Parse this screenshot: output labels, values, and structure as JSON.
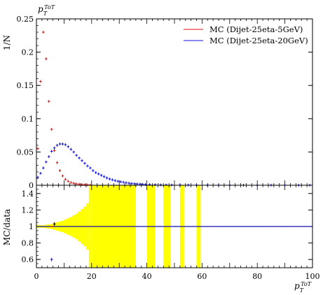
{
  "chart_data": [
    {
      "type": "scatter",
      "title": "",
      "xlabel": "",
      "ylabel": "1/N",
      "top_label": "p_T^ToT",
      "xlim": [
        0,
        100
      ],
      "ylim": [
        0,
        0.25
      ],
      "yticks": [
        0,
        0.05,
        0.1,
        0.15,
        0.2,
        0.25
      ],
      "ytick_labels": [
        "0",
        "0.05",
        "0.1",
        "0.15",
        "0.2",
        "0.25"
      ],
      "legend_position": "top-right",
      "series": [
        {
          "name": "MC (Dijet-25eta-5GeV)",
          "color": "#e01010",
          "x": [
            0.5,
            1.5,
            2.5,
            3.5,
            4.5,
            5.5,
            6.5,
            7.5,
            8.5,
            9.5,
            10.5,
            11.5,
            12.5,
            13.5,
            14.5,
            15.5,
            16.5,
            17.5,
            18.5,
            19.5
          ],
          "y": [
            0.055,
            0.156,
            0.23,
            0.19,
            0.126,
            0.084,
            0.052,
            0.034,
            0.022,
            0.014,
            0.009,
            0.006,
            0.004,
            0.003,
            0.002,
            0.0015,
            0.001,
            0.0008,
            0.0005,
            0.0003
          ]
        },
        {
          "name": "MC (Dijet-25eta-20GeV)",
          "color": "#1010e0",
          "x": [
            0.5,
            1.5,
            2.5,
            3.5,
            4.5,
            5.5,
            6.5,
            7.5,
            8.5,
            9.5,
            10.5,
            11.5,
            12.5,
            13.5,
            14.5,
            15.5,
            16.5,
            17.5,
            18.5,
            19.5,
            20.5,
            21.5,
            22.5,
            23.5,
            24.5,
            25.5,
            26.5,
            27.5,
            28.5,
            29.5,
            30.5,
            31.5,
            32.5,
            33.5,
            34.5,
            35.5,
            36.5,
            37.5,
            38.5,
            39.5,
            41,
            43,
            45,
            47,
            49,
            52,
            55,
            58,
            62,
            66,
            70,
            75,
            80,
            85,
            90,
            95,
            99
          ],
          "y": [
            0.012,
            0.018,
            0.026,
            0.035,
            0.043,
            0.051,
            0.056,
            0.06,
            0.062,
            0.062,
            0.061,
            0.058,
            0.054,
            0.05,
            0.045,
            0.041,
            0.037,
            0.033,
            0.029,
            0.026,
            0.022,
            0.019,
            0.017,
            0.015,
            0.013,
            0.011,
            0.0095,
            0.0082,
            0.007,
            0.006,
            0.0052,
            0.0045,
            0.0038,
            0.0032,
            0.0027,
            0.0023,
            0.002,
            0.0017,
            0.0014,
            0.0012,
            0.001,
            0.0008,
            0.0006,
            0.0005,
            0.0004,
            0.0003,
            0.0003,
            0.0002,
            0.0002,
            0.0001,
            0.0001,
            0.0001,
            0.0001,
            0.0001,
            0.0001,
            0.0001,
            0.0001
          ]
        }
      ]
    },
    {
      "type": "scatter",
      "title": "",
      "xlabel": "p_T^ToT",
      "ylabel": "MC/data",
      "xlim": [
        0,
        100
      ],
      "ylim": [
        0.5,
        1.5
      ],
      "xticks": [
        0,
        20,
        40,
        60,
        80,
        100
      ],
      "xtick_labels": [
        "0",
        "20",
        "40",
        "60",
        "80",
        "100"
      ],
      "yticks": [
        0.6,
        0.8,
        1,
        1.2,
        1.4
      ],
      "ytick_labels": [
        "0.6",
        "0.8",
        "1",
        "1.2",
        "1.4"
      ],
      "reference_line": 1,
      "uncertainty_band": {
        "color": "#ffff00",
        "bins": [
          {
            "x0": 0,
            "x1": 1,
            "lo": 0.98,
            "hi": 1.02
          },
          {
            "x0": 1,
            "x1": 2,
            "lo": 0.985,
            "hi": 1.015
          },
          {
            "x0": 2,
            "x1": 3,
            "lo": 0.985,
            "hi": 1.015
          },
          {
            "x0": 3,
            "x1": 4,
            "lo": 0.98,
            "hi": 1.02
          },
          {
            "x0": 4,
            "x1": 5,
            "lo": 0.975,
            "hi": 1.025
          },
          {
            "x0": 5,
            "x1": 6,
            "lo": 0.97,
            "hi": 1.03
          },
          {
            "x0": 6,
            "x1": 7,
            "lo": 0.96,
            "hi": 1.04
          },
          {
            "x0": 7,
            "x1": 8,
            "lo": 0.95,
            "hi": 1.05
          },
          {
            "x0": 8,
            "x1": 9,
            "lo": 0.94,
            "hi": 1.06
          },
          {
            "x0": 9,
            "x1": 10,
            "lo": 0.93,
            "hi": 1.07
          },
          {
            "x0": 10,
            "x1": 11,
            "lo": 0.915,
            "hi": 1.085
          },
          {
            "x0": 11,
            "x1": 12,
            "lo": 0.9,
            "hi": 1.1
          },
          {
            "x0": 12,
            "x1": 13,
            "lo": 0.885,
            "hi": 1.115
          },
          {
            "x0": 13,
            "x1": 14,
            "lo": 0.865,
            "hi": 1.135
          },
          {
            "x0": 14,
            "x1": 15,
            "lo": 0.845,
            "hi": 1.155
          },
          {
            "x0": 15,
            "x1": 16,
            "lo": 0.82,
            "hi": 1.18
          },
          {
            "x0": 16,
            "x1": 17,
            "lo": 0.79,
            "hi": 1.21
          },
          {
            "x0": 17,
            "x1": 18,
            "lo": 0.76,
            "hi": 1.24
          },
          {
            "x0": 18,
            "x1": 19,
            "lo": 0.72,
            "hi": 1.28
          },
          {
            "x0": 19,
            "x1": 20,
            "lo": 0.5,
            "hi": 1.5
          },
          {
            "x0": 20,
            "x1": 36,
            "lo": 0.5,
            "hi": 1.5
          },
          {
            "x0": 40,
            "x1": 43,
            "lo": 0.5,
            "hi": 1.5
          },
          {
            "x0": 46,
            "x1": 48.5,
            "lo": 0.5,
            "hi": 1.5
          },
          {
            "x0": 52,
            "x1": 53.5,
            "lo": 0.5,
            "hi": 1.5
          },
          {
            "x0": 58,
            "x1": 59.5,
            "lo": 0.5,
            "hi": 1.5
          }
        ]
      },
      "series": [
        {
          "color": "#e01010",
          "x": [
            0.5,
            1.5,
            2.5,
            3.5,
            4.5,
            5.5,
            6.5,
            7.5,
            8.5,
            9.5,
            10.5,
            11.5,
            12.5,
            13.5,
            14.5,
            15.5,
            16.5,
            17.5,
            18.5,
            19.5,
            20.5,
            21.5,
            22.5,
            23.5,
            24.5,
            25.5,
            26.5,
            27.5,
            28.5,
            29.5,
            30.5,
            31.5,
            32.5,
            33.5,
            34.5,
            35.5,
            36.5,
            37.5,
            38.5,
            39.5,
            40.5,
            41.5,
            42.5,
            43.5,
            44.5,
            45.5,
            46.5,
            47.5,
            48.5,
            49.5,
            50.5,
            51.5,
            52.5,
            53.5,
            54.5,
            55.5,
            56.5,
            57.5,
            58.5,
            59.5,
            60.5,
            61.5,
            62.5,
            63.5,
            64.5,
            65.5,
            66.5,
            67.5,
            68.5,
            69.5,
            70.5,
            71.5,
            72.5,
            73.5,
            74.5,
            75.5,
            76.5,
            77.5,
            78.5,
            79.5,
            80.5,
            81.5,
            82.5,
            83.5,
            84.5,
            85.5,
            86.5,
            87.5,
            88.5,
            89.5,
            90.5,
            91.5,
            92.5,
            93.5,
            94.5,
            95.5,
            96.5,
            97.5,
            98.5,
            99.5
          ],
          "y": [
            1,
            1,
            1,
            1,
            1,
            1,
            1.03,
            1,
            1,
            1,
            1,
            1,
            1,
            1,
            1,
            1,
            1,
            1,
            1,
            1,
            1,
            1,
            1,
            1,
            1,
            1,
            1,
            1,
            1,
            1,
            1,
            1,
            1,
            1,
            1,
            1,
            1,
            1,
            1,
            1,
            1,
            1,
            1,
            1,
            1,
            1,
            1,
            1,
            1,
            1,
            1,
            1,
            1,
            1,
            1,
            1,
            1,
            1,
            1,
            1,
            1,
            1,
            1,
            1,
            1,
            1,
            1,
            1,
            1,
            1,
            1,
            1,
            1,
            1,
            1,
            1,
            1,
            1,
            1,
            1,
            1,
            1,
            1,
            1,
            1,
            1,
            1,
            1,
            1,
            1,
            1,
            1,
            1,
            1,
            1,
            1,
            1,
            1,
            1,
            1
          ]
        },
        {
          "color": "#1010e0",
          "x": [
            0.5,
            1.5,
            2.5,
            3.5,
            4.5,
            5.5,
            6.5,
            7.5,
            8.5,
            9.5,
            10.5,
            11.5,
            12.5,
            13.5,
            14.5,
            15.5,
            16.5,
            17.5,
            18.5,
            19.5,
            20.5,
            21.5,
            22.5,
            23.5,
            24.5,
            25.5,
            26.5,
            27.5,
            28.5,
            29.5,
            30.5,
            31.5,
            32.5,
            33.5,
            34.5,
            35.5,
            36.5,
            37.5,
            38.5,
            39.5,
            40.5,
            41.5,
            42.5,
            43.5,
            44.5,
            45.5,
            46.5,
            47.5,
            48.5,
            49.5,
            50.5,
            51.5,
            52.5,
            53.5,
            54.5,
            55.5,
            56.5,
            57.5,
            58.5,
            59.5,
            60.5,
            61.5,
            62.5,
            63.5,
            64.5,
            65.5,
            66.5,
            67.5,
            68.5,
            69.5,
            70.5,
            71.5,
            72.5,
            73.5,
            74.5,
            75.5,
            76.5,
            77.5,
            78.5,
            79.5,
            80.5,
            81.5,
            82.5,
            83.5,
            84.5,
            85.5,
            86.5,
            87.5,
            88.5,
            89.5,
            90.5,
            91.5,
            92.5,
            93.5,
            94.5,
            95.5,
            96.5,
            97.5,
            98.5,
            99.5
          ],
          "y": [
            1,
            1,
            1,
            1,
            1,
            0.6,
            1,
            1,
            1,
            1,
            1,
            1,
            1,
            1,
            1,
            1,
            1,
            1,
            1,
            1,
            1,
            1,
            1,
            1,
            1,
            1,
            1,
            1,
            1,
            1,
            1,
            1,
            1,
            1,
            1,
            1,
            1,
            1,
            1,
            1,
            1,
            1,
            1,
            1,
            1,
            1,
            1,
            1,
            1,
            1,
            1,
            1,
            1,
            1,
            1,
            1,
            1,
            1,
            1,
            1,
            1,
            1,
            1,
            1,
            1,
            1,
            1,
            1,
            1,
            1,
            1,
            1,
            1,
            1,
            1,
            1,
            1,
            1,
            1,
            1,
            1,
            1,
            1,
            1,
            1,
            1,
            1,
            1,
            1,
            1,
            1,
            1,
            1,
            1,
            1,
            1,
            1,
            1,
            1,
            1
          ]
        },
        {
          "color": "#000000",
          "x": [
            6.5
          ],
          "y": [
            1.03
          ]
        }
      ]
    }
  ]
}
